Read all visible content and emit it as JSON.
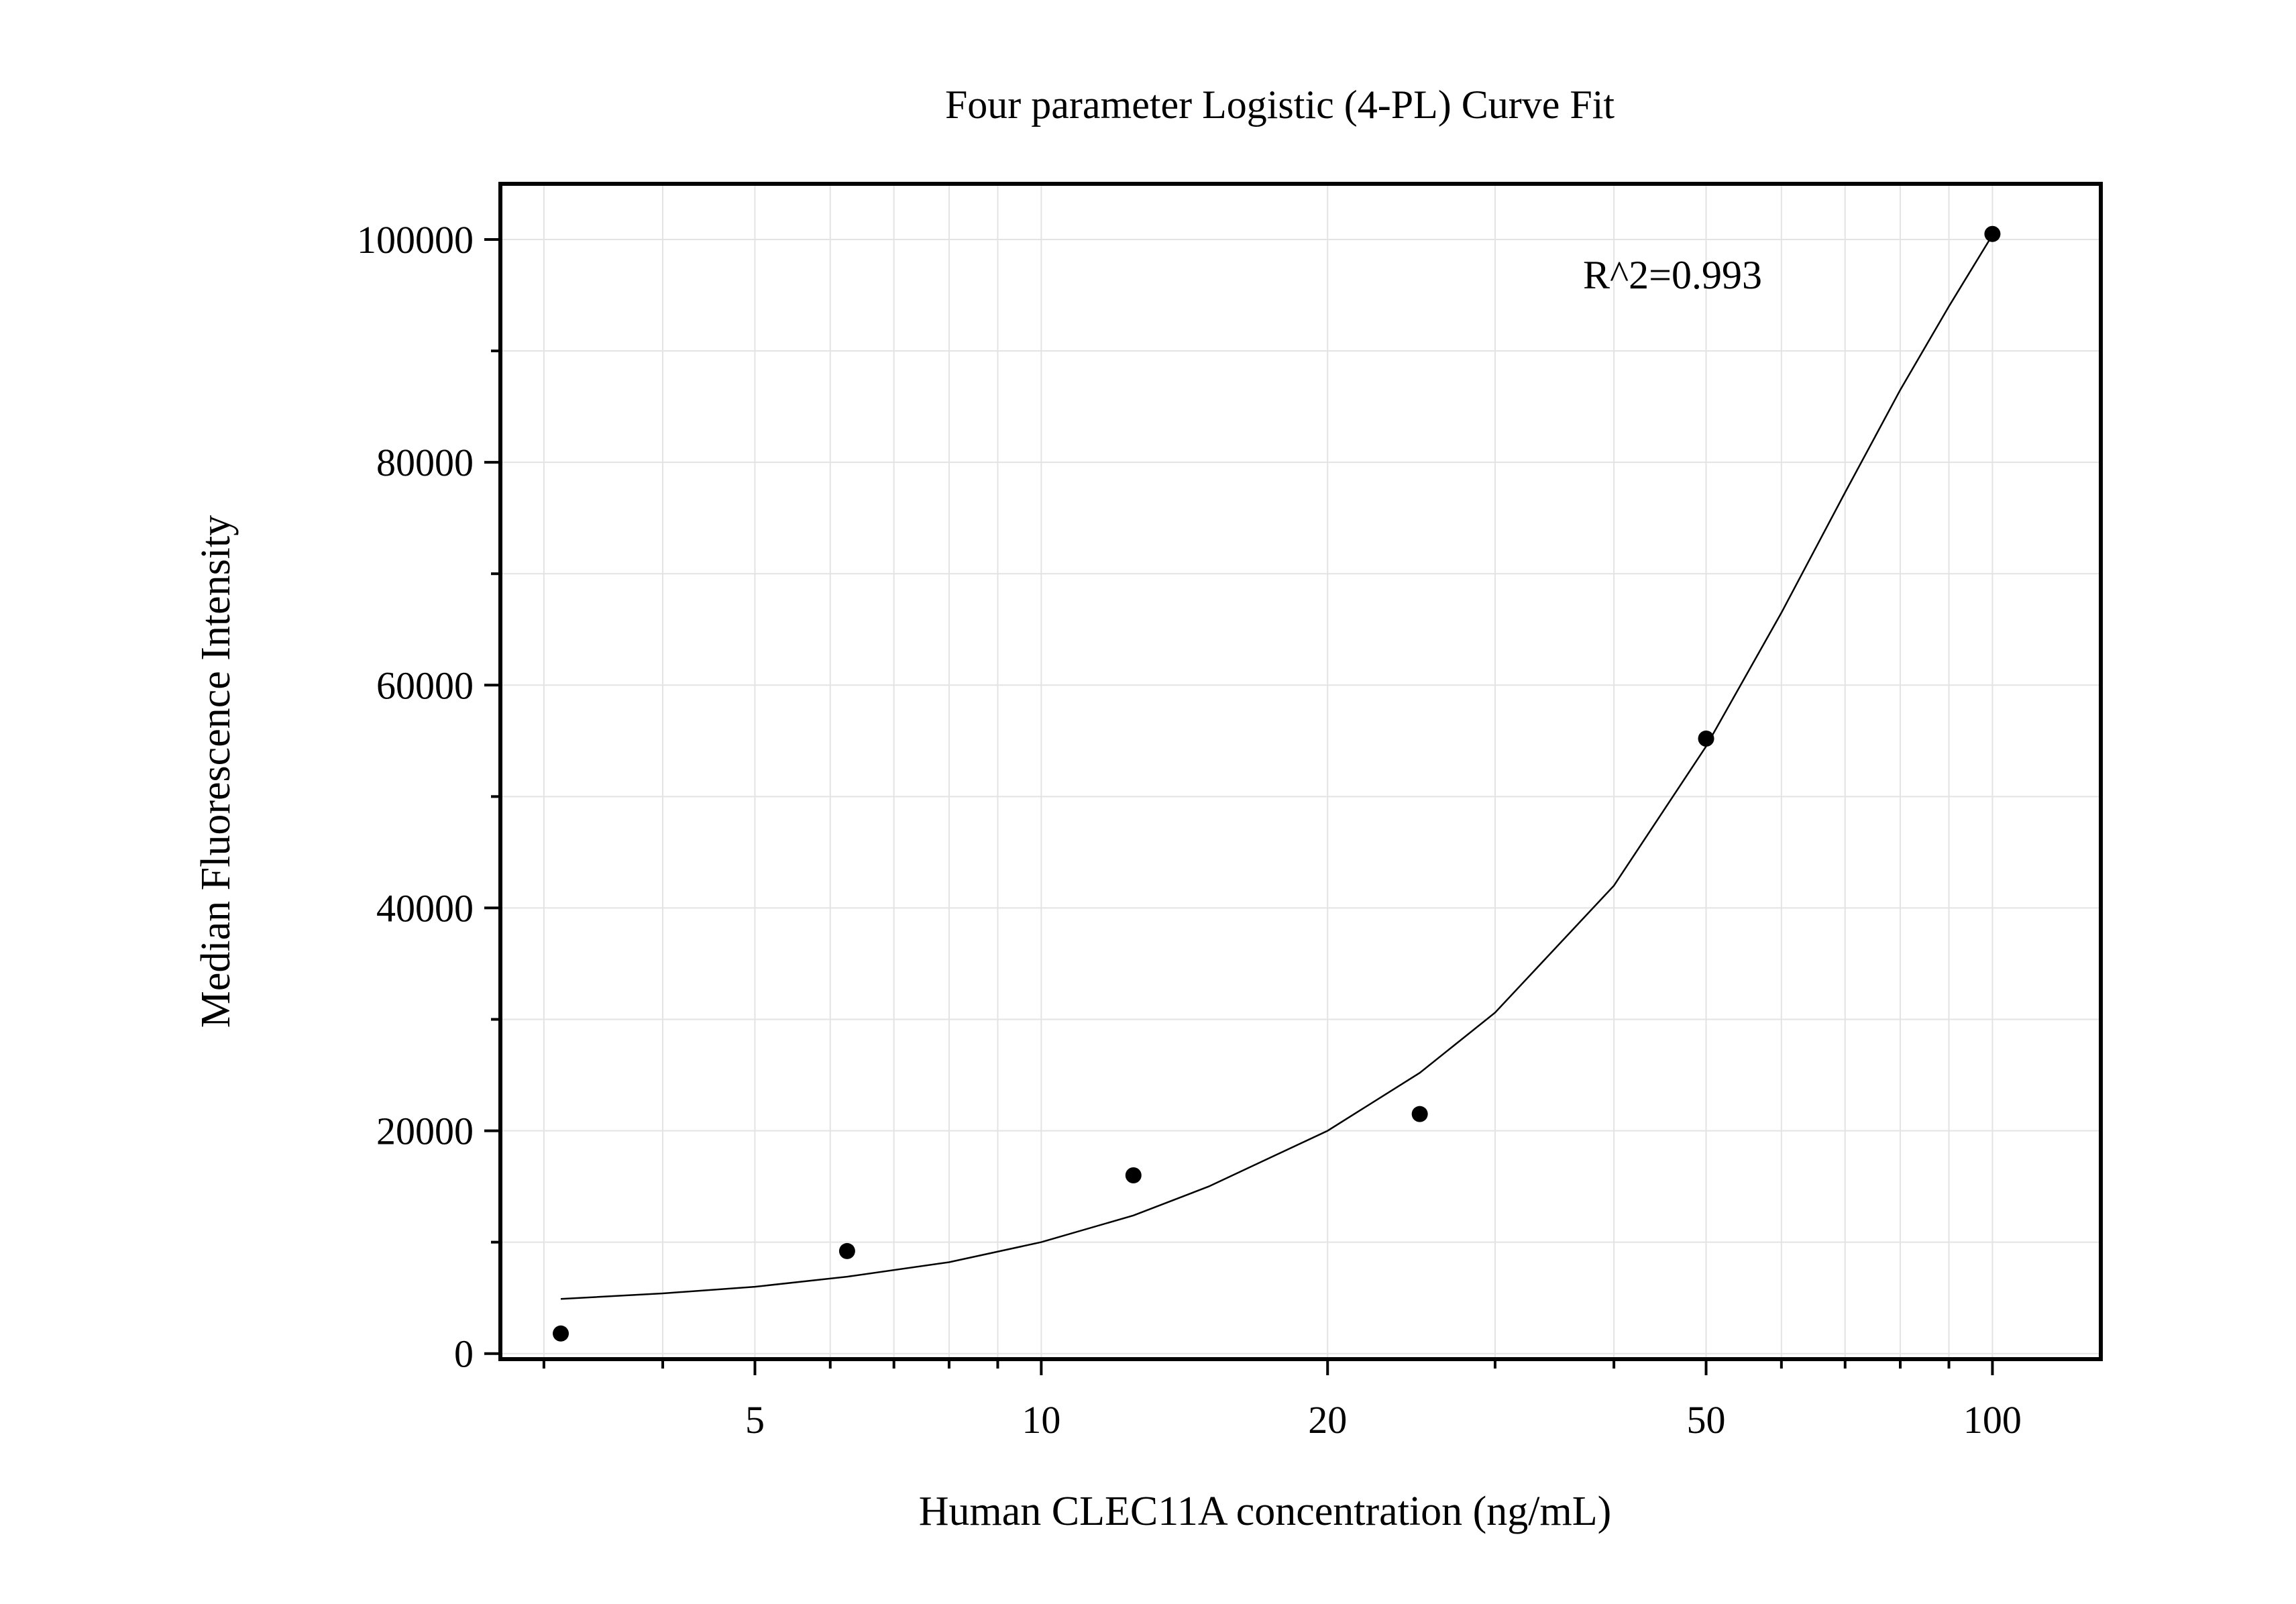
{
  "chart_data": {
    "type": "scatter",
    "title": "Four parameter Logistic (4-PL) Curve Fit",
    "xlabel": "Human CLEC11A concentration (ng/mL)",
    "ylabel": "Median Fluorescence Intensity",
    "x_scale": "log",
    "xlim": [
      2.7,
      130
    ],
    "ylim": [
      -500,
      105000
    ],
    "x_ticks": [
      5,
      10,
      20,
      50,
      100
    ],
    "x_tick_labels": [
      "5",
      "10",
      "20",
      "50",
      "100"
    ],
    "y_ticks": [
      0,
      20000,
      40000,
      60000,
      80000,
      100000
    ],
    "y_tick_labels": [
      "0",
      "20000",
      "40000",
      "60000",
      "80000",
      "100000"
    ],
    "y_minor_step": 10000,
    "grid": true,
    "annotation": "R^2=0.993",
    "series": [
      {
        "x": [
          3.125,
          6.25,
          12.5,
          25,
          50,
          100
        ],
        "y": [
          1800,
          9200,
          16000,
          21500,
          55200,
          100500
        ]
      }
    ],
    "fit_curve": {
      "x": [
        3.125,
        4,
        5,
        6.25,
        8,
        10,
        12.5,
        15,
        20,
        25,
        30,
        40,
        50,
        60,
        70,
        80,
        90,
        100
      ],
      "y": [
        4900,
        5400,
        6000,
        6900,
        8200,
        10000,
        12400,
        15000,
        20000,
        25200,
        30600,
        42000,
        54500,
        66500,
        77300,
        86500,
        94000,
        100400
      ]
    }
  }
}
